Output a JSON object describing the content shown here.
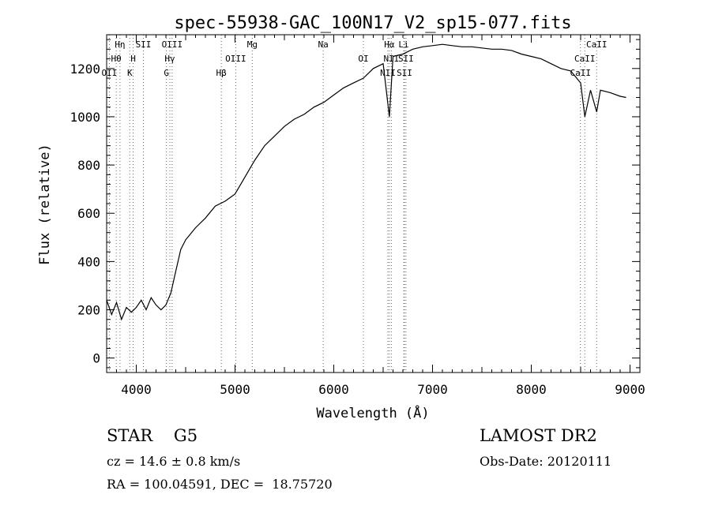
{
  "chart_data": {
    "type": "line",
    "title": "spec-55938-GAC_100N17_V2_sp15-077.fits",
    "xlabel": "Wavelength (Å)",
    "ylabel": "Flux (relative)",
    "xlim": [
      3700,
      9100
    ],
    "ylim": [
      -60,
      1340
    ],
    "xticks": [
      4000,
      5000,
      6000,
      7000,
      8000,
      9000
    ],
    "xtick_labels": [
      "4000",
      "5000",
      "6000",
      "7000",
      "8000",
      "9000"
    ],
    "yticks": [
      0,
      200,
      400,
      600,
      800,
      1000,
      1200
    ],
    "ytick_labels": [
      "0",
      "200",
      "400",
      "600",
      "800",
      "1000",
      "1200"
    ],
    "grid": false,
    "series": [
      {
        "x": [
          3700,
          3750,
          3800,
          3850,
          3900,
          3950,
          4000,
          4050,
          4100,
          4150,
          4200,
          4250,
          4300,
          4350,
          4400,
          4450,
          4500,
          4600,
          4700,
          4800,
          4900,
          5000,
          5100,
          5200,
          5300,
          5400,
          5500,
          5600,
          5700,
          5800,
          5900,
          6000,
          6100,
          6200,
          6300,
          6400,
          6500,
          6563,
          6600,
          6700,
          6800,
          6900,
          7000,
          7100,
          7200,
          7300,
          7400,
          7500,
          7600,
          7700,
          7800,
          7900,
          8000,
          8100,
          8200,
          8300,
          8400,
          8500,
          8542,
          8600,
          8662,
          8700,
          8800,
          8900,
          8960
        ],
        "values": [
          240,
          180,
          230,
          160,
          210,
          190,
          210,
          240,
          200,
          250,
          220,
          200,
          220,
          270,
          360,
          450,
          490,
          540,
          580,
          630,
          650,
          680,
          750,
          820,
          880,
          920,
          960,
          990,
          1010,
          1040,
          1060,
          1090,
          1120,
          1140,
          1160,
          1200,
          1220,
          1000,
          1250,
          1260,
          1280,
          1290,
          1295,
          1300,
          1295,
          1290,
          1290,
          1285,
          1280,
          1280,
          1275,
          1260,
          1250,
          1240,
          1220,
          1200,
          1190,
          1140,
          1000,
          1110,
          1020,
          1110,
          1100,
          1085,
          1080
        ]
      }
    ],
    "line_marks": [
      {
        "label": "Hη",
        "x": 3835
      },
      {
        "label": "Hθ",
        "x": 3797
      },
      {
        "label": "OII",
        "x": 3727
      },
      {
        "label": "SII",
        "x": 4072
      },
      {
        "label": "H",
        "x": 3968
      },
      {
        "label": "K",
        "x": 3934
      },
      {
        "label": "OIII",
        "x": 4363
      },
      {
        "label": "Hγ",
        "x": 4340
      },
      {
        "label": "G",
        "x": 4305
      },
      {
        "label": "Mg",
        "x": 5175
      },
      {
        "label": "OIII",
        "x": 5007
      },
      {
        "label": "Hβ",
        "x": 4861
      },
      {
        "label": "Na",
        "x": 5893
      },
      {
        "label": "OI",
        "x": 6300
      },
      {
        "label": "NII",
        "x": 6548
      },
      {
        "label": "Li",
        "x": 6708
      },
      {
        "label": "NII",
        "x": 6583
      },
      {
        "label": "SII",
        "x": 6716
      },
      {
        "label": "Hα",
        "x": 6563
      },
      {
        "label": "SII",
        "x": 6731
      },
      {
        "label": "CaII",
        "x": 8498
      },
      {
        "label": "CaII",
        "x": 8662
      },
      {
        "label": "CaII",
        "x": 8542
      }
    ]
  },
  "info": {
    "class_line": "STAR    G5",
    "survey": "LAMOST DR2",
    "cz": "cz = 14.6 ± 0.8 km/s",
    "obs_date": "Obs-Date: 20120111",
    "coords": "RA = 100.04591, DEC =  18.75720"
  }
}
